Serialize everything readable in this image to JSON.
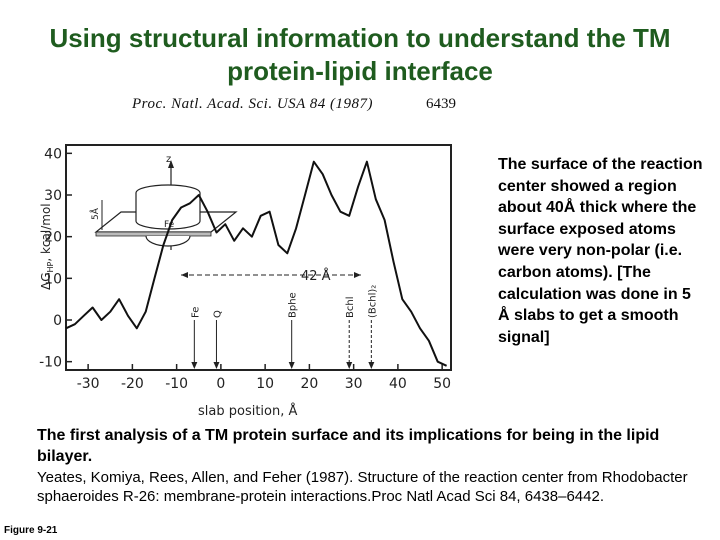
{
  "title": "Using structural information to understand the TM protein-lipid interface",
  "figure": {
    "journal_header": "Proc. Natl. Acad. Sci. USA 84 (1987)",
    "page_number": "6439",
    "y_axis_label": "ΔG",
    "y_axis_label_sub": "HP",
    "y_axis_label_units": ", kcal/mol",
    "x_axis_label": "slab position, Å",
    "span_label": "42 Å",
    "inset_axis_label": "z",
    "inset_scale_label": "5Å",
    "inset_center_label": "Fe",
    "markers": [
      "Fe",
      "Q",
      "Bphe",
      "Bchl",
      "(Bchl)₂"
    ],
    "chart_data": {
      "type": "line",
      "xlim": [
        -35,
        52
      ],
      "ylim": [
        -12,
        42
      ],
      "xticks": [
        "-30",
        "-20",
        "-10",
        "0",
        "10",
        "20",
        "30",
        "40",
        "50"
      ],
      "yticks": [
        "40",
        "30",
        "20",
        "10",
        "0",
        "-10"
      ],
      "x": [
        -35,
        -33,
        -31,
        -29,
        -27,
        -25,
        -23,
        -21,
        -19,
        -17,
        -15,
        -13,
        -11,
        -9,
        -7,
        -5,
        -3,
        -1,
        1,
        3,
        5,
        7,
        9,
        11,
        13,
        15,
        17,
        19,
        21,
        23,
        25,
        27,
        29,
        31,
        33,
        35,
        37,
        39,
        41,
        43,
        45,
        47,
        49,
        51
      ],
      "values": [
        -2,
        -1,
        1,
        3,
        0,
        2,
        5,
        1,
        -2,
        2,
        10,
        18,
        24,
        27,
        28,
        30,
        26,
        21,
        23,
        19,
        22,
        20,
        25,
        26,
        18,
        16,
        22,
        30,
        38,
        35,
        30,
        26,
        25,
        32,
        38,
        29,
        24,
        14,
        5,
        2,
        -2,
        -5,
        -10,
        -11
      ]
    }
  },
  "description": "The surface of the reaction center showed a region about 40Å thick where the surface exposed atoms were very non-polar (i.e. carbon atoms).  [The calculation was done in 5 Å slabs to get a smooth signal]",
  "summary": "The first analysis of a TM protein surface and its implications for being in the lipid bilayer.",
  "reference": "Yeates, Komiya, Rees, Allen, and Feher (1987). Structure of the reaction center from Rhodobacter sphaeroides R-26: membrane-protein interactions.Proc Natl Acad Sci 84, 6438–6442.",
  "figure_label": "Figure 9-21"
}
